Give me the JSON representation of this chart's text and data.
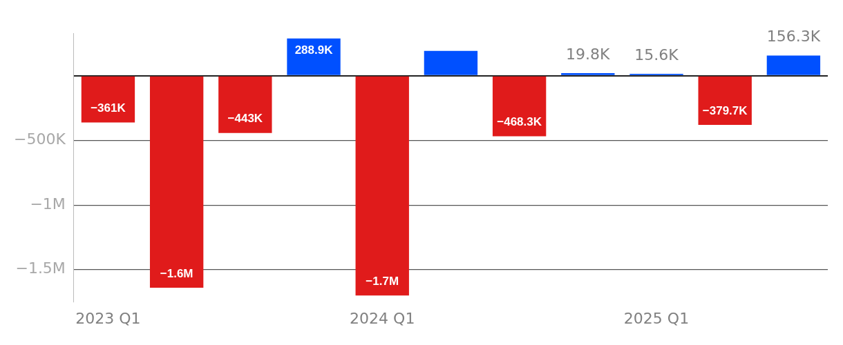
{
  "chart_data": {
    "type": "bar",
    "categories": [
      "2023 Q1",
      null,
      null,
      null,
      "2024 Q1",
      null,
      null,
      null,
      "2025 Q1",
      null,
      null
    ],
    "values": [
      -361000,
      -1640000,
      -443000,
      288900,
      -1700000,
      193000,
      -468300,
      19800,
      15600,
      -379700,
      156300
    ],
    "colors": [
      "#e01b1b",
      "#e01b1b",
      "#e01b1b",
      "#0050ff",
      "#e01b1b",
      "#0050ff",
      "#e01b1b",
      "#0050ff",
      "#0050ff",
      "#e01b1b",
      "#0050ff"
    ],
    "value_labels": [
      "−361K",
      "−1.6M",
      "−443K",
      "288.9K",
      "−1.7M",
      null,
      "−468.3K",
      "19.8K",
      "15.6K",
      "−379.7K",
      "156.3K"
    ],
    "ylim": [
      -1750000,
      330000
    ],
    "yticks": [
      {
        "value": -1500000,
        "label": "−1.5M"
      },
      {
        "value": -1000000,
        "label": "−1M"
      },
      {
        "value": -500000,
        "label": "−500K"
      },
      {
        "value": 0,
        "label": null
      }
    ],
    "grid": "y",
    "legend": false
  }
}
